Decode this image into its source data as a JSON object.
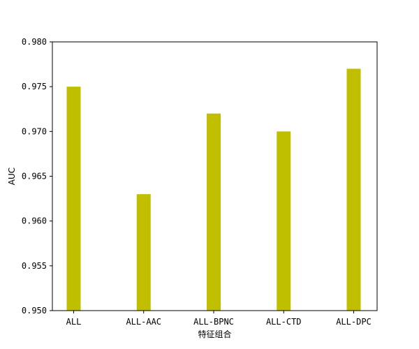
{
  "chart_data": {
    "type": "bar",
    "categories": [
      "ALL",
      "ALL-AAC",
      "ALL-BPNC",
      "ALL-CTD",
      "ALL-DPC"
    ],
    "values": [
      0.975,
      0.963,
      0.972,
      0.97,
      0.977
    ],
    "xlabel": "特征组合",
    "ylabel": "AUC",
    "ylim": [
      0.95,
      0.98
    ],
    "yticks": [
      "0.950",
      "0.955",
      "0.960",
      "0.965",
      "0.970",
      "0.975",
      "0.980"
    ],
    "bar_color": "#bfbf00",
    "grid": false,
    "legend": "none"
  }
}
